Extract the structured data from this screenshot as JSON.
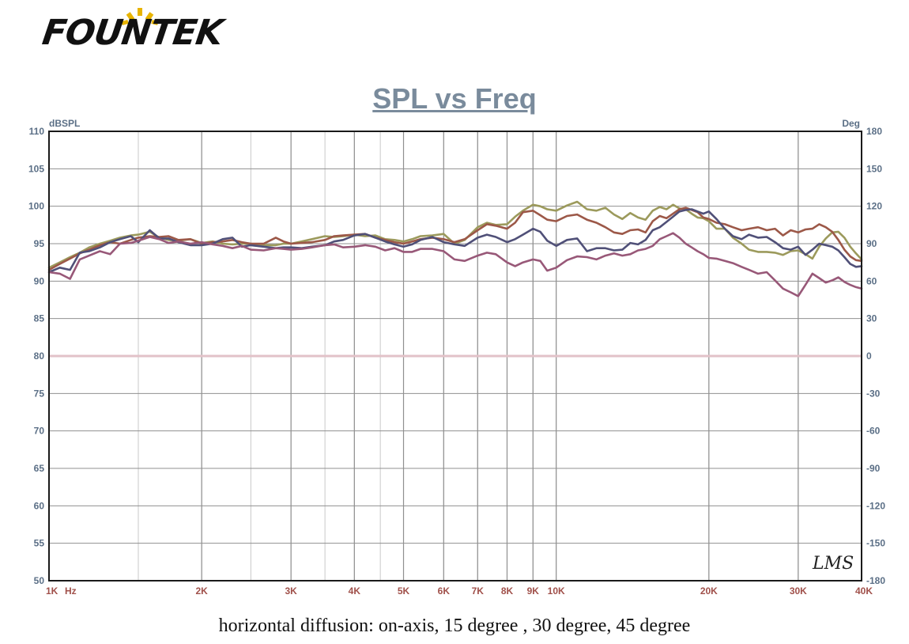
{
  "logo": {
    "text": "FOUNTEK",
    "accent_color": "#e8b400"
  },
  "watermark": "LMS",
  "caption": "horizontal diffusion: on-axis, 15 degree , 30 degree, 45 degree",
  "chart_data": {
    "type": "line",
    "title": "SPL vs Freq",
    "ylabel": "dBSPL",
    "y2label": "Deg",
    "xlabel": "Hz",
    "xscale": "log",
    "xlim": [
      1000,
      40000
    ],
    "ylim": [
      50,
      110
    ],
    "y2lim": [
      -180,
      180
    ],
    "grid": true,
    "legend": "none",
    "x_ticks": [
      {
        "value": 1000,
        "label": "1K"
      },
      {
        "value": 2000,
        "label": "2K"
      },
      {
        "value": 3000,
        "label": "3K"
      },
      {
        "value": 4000,
        "label": "4K"
      },
      {
        "value": 5000,
        "label": "5K"
      },
      {
        "value": 6000,
        "label": "6K"
      },
      {
        "value": 7000,
        "label": "7K"
      },
      {
        "value": 8000,
        "label": "8K"
      },
      {
        "value": 9000,
        "label": "9K"
      },
      {
        "value": 10000,
        "label": "10K"
      },
      {
        "value": 20000,
        "label": "20K"
      },
      {
        "value": 30000,
        "label": "30K"
      },
      {
        "value": 40000,
        "label": "40K"
      }
    ],
    "y_ticks": [
      "110",
      "105",
      "100",
      "95",
      "90",
      "85",
      "80",
      "75",
      "70",
      "65",
      "60",
      "55",
      "50"
    ],
    "y2_ticks": [
      "180",
      "150",
      "120",
      "90",
      "60",
      "30",
      "0",
      "-30",
      "-60",
      "-90",
      "-120",
      "-150",
      "-180"
    ],
    "colors": {
      "axis_text": "#5b6f86",
      "x_text": "#a0504a",
      "frame": "#1a1a1a",
      "grid_major": "#909090",
      "grid_minor": "#c8c8c8",
      "phase_line": "#e2c2c8"
    },
    "phase_line_deg": 0,
    "x": [
      1000,
      1050,
      1100,
      1150,
      1200,
      1260,
      1320,
      1380,
      1450,
      1500,
      1580,
      1650,
      1720,
      1800,
      1900,
      2000,
      2100,
      2200,
      2300,
      2400,
      2500,
      2650,
      2800,
      2900,
      3000,
      3150,
      3300,
      3500,
      3650,
      3800,
      4000,
      4200,
      4400,
      4600,
      4800,
      5000,
      5200,
      5400,
      5700,
      6000,
      6300,
      6600,
      7000,
      7300,
      7600,
      8000,
      8300,
      8600,
      9000,
      9300,
      9600,
      10000,
      10500,
      11000,
      11500,
      12000,
      12500,
      13000,
      13500,
      14000,
      14500,
      15000,
      15500,
      16000,
      16500,
      17000,
      17500,
      18000,
      18500,
      19000,
      19500,
      20000,
      20700,
      21500,
      22300,
      23200,
      24000,
      25000,
      26000,
      27000,
      28000,
      29000,
      30000,
      31000,
      32000,
      33000,
      34000,
      35000,
      36000,
      37000,
      38000,
      39000,
      40000
    ],
    "series": [
      {
        "color": "#9c9a5c",
        "values": [
          91.8,
          92.5,
          93.2,
          93.8,
          94.5,
          95.0,
          95.4,
          95.8,
          96.1,
          96.2,
          96.6,
          95.8,
          95.5,
          95.4,
          95.6,
          95.1,
          95.3,
          95.0,
          94.9,
          95.0,
          95.0,
          94.8,
          94.8,
          95.0,
          95.0,
          95.3,
          95.6,
          96.0,
          95.9,
          96.0,
          96.2,
          96.0,
          96.1,
          95.6,
          95.5,
          95.3,
          95.6,
          96.0,
          96.1,
          96.3,
          95.0,
          95.5,
          97.2,
          97.8,
          97.5,
          97.6,
          98.6,
          99.4,
          100.2,
          100.0,
          99.6,
          99.4,
          100.1,
          100.6,
          99.6,
          99.4,
          99.8,
          98.9,
          98.3,
          99.1,
          98.5,
          98.2,
          99.4,
          99.9,
          99.6,
          100.2,
          99.7,
          99.6,
          99.0,
          98.5,
          98.4,
          98.0,
          97.0,
          97.0,
          95.8,
          95.0,
          94.2,
          93.9,
          93.9,
          93.8,
          93.5,
          94.0,
          94.1,
          93.6,
          93.0,
          94.6,
          95.7,
          96.5,
          96.6,
          95.8,
          94.6,
          93.7,
          92.9
        ]
      },
      {
        "color": "#9c5848",
        "values": [
          91.5,
          92.3,
          93.0,
          93.7,
          94.2,
          94.8,
          95.2,
          95.0,
          95.5,
          95.8,
          96.0,
          95.9,
          96.0,
          95.5,
          95.6,
          95.0,
          95.2,
          95.3,
          95.5,
          95.2,
          95.0,
          95.0,
          95.8,
          95.3,
          95.0,
          95.1,
          95.2,
          95.5,
          96.0,
          96.1,
          96.2,
          96.3,
          95.8,
          95.5,
          95.2,
          95.0,
          95.3,
          95.6,
          95.8,
          95.6,
          95.2,
          95.6,
          96.8,
          97.6,
          97.4,
          97.0,
          97.8,
          99.2,
          99.4,
          98.8,
          98.2,
          98.0,
          98.7,
          98.9,
          98.2,
          97.8,
          97.2,
          96.5,
          96.3,
          96.8,
          96.9,
          96.5,
          98.0,
          98.7,
          98.4,
          99.0,
          99.6,
          99.8,
          99.5,
          99.2,
          98.5,
          98.3,
          97.8,
          97.6,
          97.2,
          96.8,
          97.0,
          97.2,
          96.8,
          97.0,
          96.1,
          96.8,
          96.5,
          96.9,
          97.0,
          97.6,
          97.2,
          96.6,
          95.5,
          94.2,
          93.3,
          92.8,
          92.7
        ]
      },
      {
        "color": "#505078",
        "values": [
          91.2,
          91.8,
          91.5,
          93.8,
          94.0,
          94.5,
          95.2,
          95.6,
          96.0,
          95.2,
          96.8,
          95.7,
          95.7,
          95.2,
          94.8,
          94.8,
          95.0,
          95.6,
          95.8,
          94.6,
          94.8,
          94.6,
          94.4,
          94.5,
          94.5,
          94.4,
          94.6,
          94.8,
          95.3,
          95.5,
          96.1,
          96.3,
          95.8,
          95.3,
          94.9,
          94.6,
          94.9,
          95.5,
          95.9,
          95.2,
          94.9,
          94.7,
          95.8,
          96.2,
          95.9,
          95.2,
          95.6,
          96.2,
          97.0,
          96.6,
          95.4,
          94.7,
          95.5,
          95.7,
          94.0,
          94.4,
          94.4,
          94.1,
          94.2,
          95.1,
          94.9,
          95.5,
          96.8,
          97.2,
          97.9,
          98.6,
          99.3,
          99.5,
          99.6,
          99.3,
          99.0,
          99.3,
          98.3,
          97.0,
          96.0,
          95.6,
          96.2,
          95.8,
          95.9,
          95.2,
          94.4,
          94.2,
          94.6,
          93.5,
          94.2,
          95.0,
          94.8,
          94.6,
          94.1,
          93.2,
          92.3,
          91.9,
          92.0
        ]
      },
      {
        "color": "#985878",
        "values": [
          91.2,
          91.0,
          90.3,
          92.9,
          93.4,
          94.0,
          93.6,
          95.0,
          95.1,
          95.4,
          95.9,
          95.6,
          95.1,
          95.3,
          95.0,
          95.2,
          94.9,
          94.7,
          94.4,
          94.7,
          94.2,
          94.1,
          94.4,
          94.3,
          94.2,
          94.3,
          94.5,
          94.8,
          94.9,
          94.5,
          94.6,
          94.8,
          94.6,
          94.1,
          94.4,
          93.9,
          93.9,
          94.3,
          94.3,
          94.0,
          92.9,
          92.7,
          93.4,
          93.8,
          93.6,
          92.5,
          92.0,
          92.5,
          92.9,
          92.7,
          91.4,
          91.8,
          92.8,
          93.3,
          93.2,
          92.9,
          93.4,
          93.7,
          93.4,
          93.6,
          94.1,
          94.3,
          94.7,
          95.6,
          96.0,
          96.4,
          95.8,
          95.0,
          94.5,
          94.0,
          93.6,
          93.1,
          93.0,
          92.7,
          92.4,
          91.9,
          91.5,
          91.0,
          91.2,
          90.1,
          89.0,
          88.5,
          88.0,
          89.5,
          91.0,
          90.4,
          89.8,
          90.1,
          90.5,
          89.9,
          89.5,
          89.2,
          89.0
        ]
      }
    ]
  }
}
